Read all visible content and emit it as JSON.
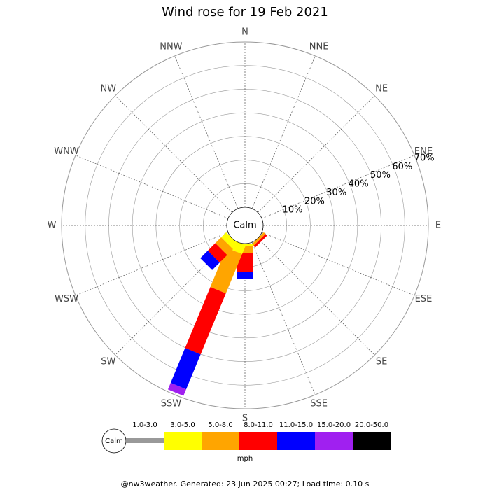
{
  "chart_data": {
    "type": "windrose",
    "title": "Wind rose for 19 Feb 2021",
    "categories": [
      "N",
      "NNE",
      "NE",
      "ENE",
      "E",
      "ESE",
      "SE",
      "SSE",
      "S",
      "SSW",
      "SW",
      "WSW",
      "W",
      "WNW",
      "NW",
      "NNW"
    ],
    "center_label": "Calm",
    "series": [
      {
        "name": "1.0-3.0",
        "color": "#999999",
        "values": [
          0,
          0,
          0,
          0,
          0,
          0,
          0,
          0,
          0,
          0,
          0,
          0,
          0,
          0,
          0,
          0
        ]
      },
      {
        "name": "3.0-5.0",
        "color": "#ffff00",
        "values": [
          0,
          0,
          0,
          0,
          0,
          0,
          0,
          0,
          1,
          4,
          3,
          0,
          0,
          0,
          0,
          0
        ]
      },
      {
        "name": "5.0-8.0",
        "color": "#ffa500",
        "values": [
          0,
          0,
          0,
          0,
          0,
          0,
          1,
          0,
          3,
          18,
          3.5,
          0,
          0,
          0,
          0,
          0
        ]
      },
      {
        "name": "8.0-11.0",
        "color": "#ff0000",
        "values": [
          0,
          0,
          0,
          0,
          0,
          0,
          1,
          0,
          8,
          28,
          4.5,
          0,
          0,
          0,
          0,
          0
        ]
      },
      {
        "name": "11.0-15.0",
        "color": "#0000ff",
        "values": [
          0,
          0,
          0,
          0,
          0,
          0,
          0,
          0,
          3,
          16,
          4.5,
          0,
          0,
          0,
          0,
          0
        ]
      },
      {
        "name": "15.0-20.0",
        "color": "#a020f0",
        "values": [
          0,
          0,
          0,
          0,
          0,
          0,
          0,
          0,
          0,
          3,
          0,
          0,
          0,
          0,
          0,
          0
        ]
      },
      {
        "name": "20.0-50.0",
        "color": "#000000",
        "values": [
          0,
          0,
          0,
          0,
          0,
          0,
          0,
          0,
          0,
          0,
          0,
          0,
          0,
          0,
          0,
          0
        ]
      }
    ],
    "rlim": [
      0,
      70
    ],
    "rticks": [
      {
        "value": 10,
        "label": "10%"
      },
      {
        "value": 20,
        "label": "20%"
      },
      {
        "value": 30,
        "label": "30%"
      },
      {
        "value": 40,
        "label": "40%"
      },
      {
        "value": 50,
        "label": "50%"
      },
      {
        "value": 60,
        "label": "60%"
      },
      {
        "value": 70,
        "label": "70%"
      }
    ],
    "legend_calm": "Calm",
    "legend_unit": "mph",
    "footer": "@nw3weather. Generated: 23 Jun 2025 00:27; Load time: 0.10 s"
  }
}
